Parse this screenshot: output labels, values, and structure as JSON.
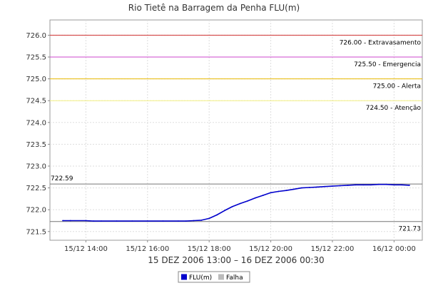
{
  "chart_data": {
    "type": "line",
    "title": "Rio Tietê na Barragem da Penha FLU(m)",
    "xlabel": "15 DEZ 2006 13:00 – 16 DEZ 2006 00:30",
    "ylabel": "",
    "ylim": [
      721.3,
      726.35
    ],
    "xlim": [
      "2006-12-15 12:50",
      "2006-12-16 00:55"
    ],
    "yticks": [
      "721.5",
      "722.0",
      "722.5",
      "723.0",
      "723.5",
      "724.0",
      "724.5",
      "725.0",
      "725.5",
      "726.0"
    ],
    "xticks": [
      "15/12 14:00",
      "15/12 16:00",
      "15/12 18:00",
      "15/12 20:00",
      "15/12 22:00",
      "16/12 00:00"
    ],
    "grid": true,
    "legend_position": "bottom",
    "thresholds": [
      {
        "value": 726.0,
        "label": "726.00 - Extravasamento",
        "color": "#d03030"
      },
      {
        "value": 725.5,
        "label": "725.50 - Emergencia",
        "color": "#cc44cc"
      },
      {
        "value": 725.0,
        "label": "725.00 - Alerta",
        "color": "#e8b800"
      },
      {
        "value": 724.5,
        "label": "724.50 - Atenção",
        "color": "#f4f080"
      }
    ],
    "max_line": {
      "value": 722.59,
      "label": "722.59",
      "color": "#777777"
    },
    "min_line": {
      "value": 721.73,
      "label": "721.73",
      "color": "#777777"
    },
    "series": [
      {
        "name": "FLU(m)",
        "color": "#0000cc",
        "x": [
          "2006-12-15 13:15",
          "2006-12-15 13:30",
          "2006-12-15 14:00",
          "2006-12-15 14:15",
          "2006-12-15 14:30",
          "2006-12-15 15:00",
          "2006-12-15 15:30",
          "2006-12-15 16:00",
          "2006-12-15 16:30",
          "2006-12-15 17:00",
          "2006-12-15 17:15",
          "2006-12-15 17:30",
          "2006-12-15 17:45",
          "2006-12-15 18:00",
          "2006-12-15 18:15",
          "2006-12-15 18:30",
          "2006-12-15 18:45",
          "2006-12-15 19:00",
          "2006-12-15 19:15",
          "2006-12-15 19:30",
          "2006-12-15 19:45",
          "2006-12-15 20:00",
          "2006-12-15 20:15",
          "2006-12-15 20:30",
          "2006-12-15 20:45",
          "2006-12-15 21:00",
          "2006-12-15 21:15",
          "2006-12-15 21:30",
          "2006-12-15 21:45",
          "2006-12-15 22:00",
          "2006-12-15 22:15",
          "2006-12-15 22:30",
          "2006-12-15 22:45",
          "2006-12-15 23:00",
          "2006-12-15 23:15",
          "2006-12-15 23:30",
          "2006-12-15 23:45",
          "2006-12-16 00:00",
          "2006-12-16 00:15",
          "2006-12-16 00:30"
        ],
        "values": [
          721.75,
          721.75,
          721.75,
          721.74,
          721.74,
          721.74,
          721.74,
          721.74,
          721.74,
          721.74,
          721.74,
          721.75,
          721.76,
          721.8,
          721.88,
          721.98,
          722.07,
          722.14,
          722.2,
          722.27,
          722.33,
          722.39,
          722.42,
          722.44,
          722.47,
          722.5,
          722.51,
          722.52,
          722.53,
          722.54,
          722.55,
          722.56,
          722.57,
          722.57,
          722.57,
          722.58,
          722.58,
          722.57,
          722.57,
          722.56
        ]
      }
    ],
    "legend": [
      {
        "name": "FLU(m)",
        "color": "#0000cc"
      },
      {
        "name": "Falha",
        "color": "#bbbbbb"
      }
    ]
  }
}
